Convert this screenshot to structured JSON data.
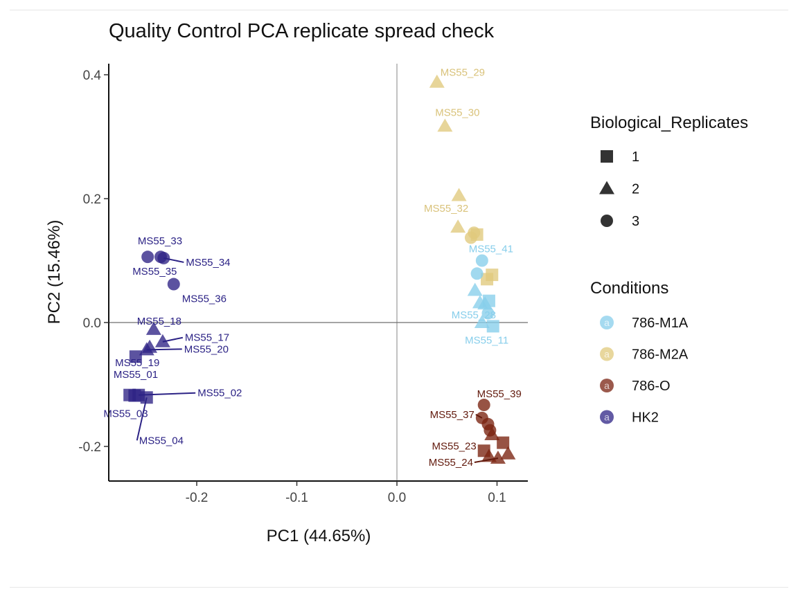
{
  "chart_data": {
    "type": "scatter",
    "title": "Quality Control PCA replicate spread check",
    "xlabel": "PC1 (44.65%)",
    "ylabel": "PC2 (15.46%)",
    "xlim": [
      -0.285,
      0.13
    ],
    "ylim": [
      -0.255,
      0.415
    ],
    "xticks": [
      -0.2,
      -0.1,
      0.0,
      0.1
    ],
    "xtick_labels": [
      "-0.2",
      "-0.1",
      "0.0",
      "0.1"
    ],
    "yticks": [
      -0.2,
      0.0,
      0.2,
      0.4
    ],
    "ytick_labels": [
      "-0.2",
      "0.0",
      "0.2",
      "0.4"
    ],
    "reference_lines": {
      "x": 0,
      "y": 0
    },
    "grid": false,
    "legend_position": "right",
    "shape_legend": {
      "title": "Biological_Replicates",
      "items": [
        {
          "label": "1",
          "shape": "square"
        },
        {
          "label": "2",
          "shape": "triangle"
        },
        {
          "label": "3",
          "shape": "circle"
        }
      ]
    },
    "color_legend": {
      "title": "Conditions",
      "glyph": "a",
      "items": [
        {
          "label": "786-M1A",
          "color": "#87ceeb"
        },
        {
          "label": "786-M2A",
          "color": "#e0c97c"
        },
        {
          "label": "786-O",
          "color": "#7a2210"
        },
        {
          "label": "HK2",
          "color": "#2e2385"
        }
      ]
    },
    "label_colors": {
      "786-M1A": "#87ceeb",
      "786-M2A": "#d9c27a",
      "786-O": "#621a0d",
      "HK2": "#2b2285"
    },
    "points": [
      {
        "condition": "786-M2A",
        "rep": "2",
        "x": 0.04,
        "y": 0.388,
        "label": "MS55_29"
      },
      {
        "condition": "786-M2A",
        "rep": "2",
        "x": 0.048,
        "y": 0.317,
        "label": "MS55_30"
      },
      {
        "condition": "786-M2A",
        "rep": "2",
        "x": 0.062,
        "y": 0.205
      },
      {
        "condition": "786-M2A",
        "rep": "2",
        "x": 0.061,
        "y": 0.154,
        "label": "MS55_32"
      },
      {
        "condition": "786-M2A",
        "rep": "1",
        "x": 0.08,
        "y": 0.142
      },
      {
        "condition": "786-M2A",
        "rep": "3",
        "x": 0.077,
        "y": 0.145
      },
      {
        "condition": "786-M2A",
        "rep": "3",
        "x": 0.074,
        "y": 0.137
      },
      {
        "condition": "786-M2A",
        "rep": "1",
        "x": 0.095,
        "y": 0.077
      },
      {
        "condition": "786-M2A",
        "rep": "1",
        "x": 0.09,
        "y": 0.07
      },
      {
        "condition": "786-M1A",
        "rep": "3",
        "x": 0.085,
        "y": 0.1,
        "label": "MS55_41"
      },
      {
        "condition": "786-M1A",
        "rep": "3",
        "x": 0.08,
        "y": 0.079
      },
      {
        "condition": "786-M1A",
        "rep": "2",
        "x": 0.078,
        "y": 0.052
      },
      {
        "condition": "786-M1A",
        "rep": "1",
        "x": 0.092,
        "y": 0.035
      },
      {
        "condition": "786-M1A",
        "rep": "2",
        "x": 0.083,
        "y": 0.032
      },
      {
        "condition": "786-M1A",
        "rep": "2",
        "x": 0.088,
        "y": 0.03
      },
      {
        "condition": "786-M1A",
        "rep": "3",
        "x": 0.091,
        "y": 0.015
      },
      {
        "condition": "786-M1A",
        "rep": "2",
        "x": 0.085,
        "y": 0.0,
        "label": "MS55_28"
      },
      {
        "condition": "786-M1A",
        "rep": "1",
        "x": 0.096,
        "y": -0.006,
        "label": "MS55_11"
      },
      {
        "condition": "786-O",
        "rep": "3",
        "x": 0.087,
        "y": -0.133,
        "label": "MS55_39"
      },
      {
        "condition": "786-O",
        "rep": "3",
        "x": 0.085,
        "y": -0.154,
        "label": "MS55_37"
      },
      {
        "condition": "786-O",
        "rep": "3",
        "x": 0.091,
        "y": -0.164
      },
      {
        "condition": "786-O",
        "rep": "3",
        "x": 0.093,
        "y": -0.174
      },
      {
        "condition": "786-O",
        "rep": "2",
        "x": 0.095,
        "y": -0.181
      },
      {
        "condition": "786-O",
        "rep": "1",
        "x": 0.106,
        "y": -0.194
      },
      {
        "condition": "786-O",
        "rep": "1",
        "x": 0.087,
        "y": -0.207,
        "label": "MS55_23"
      },
      {
        "condition": "786-O",
        "rep": "2",
        "x": 0.092,
        "y": -0.216
      },
      {
        "condition": "786-O",
        "rep": "2",
        "x": 0.111,
        "y": -0.212
      },
      {
        "condition": "786-O",
        "rep": "2",
        "x": 0.101,
        "y": -0.219,
        "label": "MS55_24"
      },
      {
        "condition": "HK2",
        "rep": "3",
        "x": -0.249,
        "y": 0.106,
        "label": "MS55_35"
      },
      {
        "condition": "HK2",
        "rep": "3",
        "x": -0.236,
        "y": 0.106,
        "label": "MS55_33"
      },
      {
        "condition": "HK2",
        "rep": "3",
        "x": -0.233,
        "y": 0.104,
        "label": "MS55_34"
      },
      {
        "condition": "HK2",
        "rep": "3",
        "x": -0.223,
        "y": 0.062,
        "label": "MS55_36"
      },
      {
        "condition": "HK2",
        "rep": "2",
        "x": -0.243,
        "y": -0.011,
        "label": "MS55_18"
      },
      {
        "condition": "HK2",
        "rep": "2",
        "x": -0.234,
        "y": -0.031,
        "label": "MS55_17"
      },
      {
        "condition": "HK2",
        "rep": "2",
        "x": -0.247,
        "y": -0.04,
        "label": "MS55_19"
      },
      {
        "condition": "HK2",
        "rep": "2",
        "x": -0.25,
        "y": -0.044,
        "label": "MS55_20"
      },
      {
        "condition": "HK2",
        "rep": "1",
        "x": -0.261,
        "y": -0.055,
        "label": "MS55_01"
      },
      {
        "condition": "HK2",
        "rep": "1",
        "x": -0.267,
        "y": -0.117
      },
      {
        "condition": "HK2",
        "rep": "1",
        "x": -0.258,
        "y": -0.117,
        "label": "MS55_02"
      },
      {
        "condition": "HK2",
        "rep": "1",
        "x": -0.262,
        "y": -0.118,
        "label": "MS55_03"
      },
      {
        "condition": "HK2",
        "rep": "1",
        "x": -0.25,
        "y": -0.121,
        "label": "MS55_04"
      }
    ]
  }
}
